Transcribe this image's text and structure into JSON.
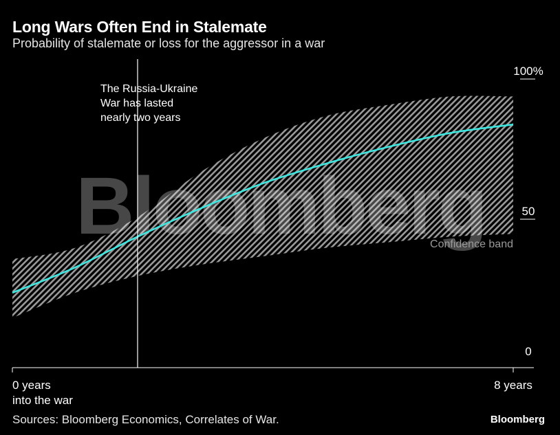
{
  "title": "Long Wars Often End in Stalemate",
  "subtitle": "Probability of stalemate or loss for the aggressor in a war",
  "source": "Sources: Bloomberg Economics, Correlates of War.",
  "brand": "Bloomberg",
  "watermark": "Bloomberg",
  "annotation": {
    "lines": [
      "The Russia-Ukraine",
      "War has lasted",
      "nearly two years"
    ],
    "x": 2
  },
  "band_label": "Confidence band",
  "colors": {
    "line": "#3ee6e0",
    "band": "#9a9a9a",
    "background": "#000000"
  },
  "chart_data": {
    "type": "line",
    "title": "Long Wars Often End in Stalemate",
    "subtitle": "Probability of stalemate or loss for the aggressor in a war",
    "xlabel": "",
    "ylabel": "",
    "xlim": [
      0,
      8
    ],
    "ylim": [
      0,
      100
    ],
    "x_ticks": [
      {
        "value": 0,
        "lines": [
          "0 years",
          "into the war"
        ]
      },
      {
        "value": 8,
        "lines": [
          "8 years"
        ]
      }
    ],
    "y_ticks": [
      {
        "value": 100,
        "label": "100%"
      },
      {
        "value": 50,
        "label": "50"
      },
      {
        "value": 0,
        "label": "0"
      }
    ],
    "x": [
      0,
      1,
      2,
      3,
      4,
      5,
      6,
      7,
      8
    ],
    "series": [
      {
        "values": [
          25,
          34,
          45,
          55,
          64,
          71,
          77,
          82,
          85
        ]
      }
    ],
    "band": {
      "name": "Confidence band",
      "upper": [
        37,
        41,
        52,
        68,
        80,
        88,
        92,
        95,
        95
      ],
      "lower": [
        16,
        25,
        31,
        35,
        38,
        41,
        43,
        45,
        46
      ]
    },
    "grid": false,
    "legend": "none"
  }
}
